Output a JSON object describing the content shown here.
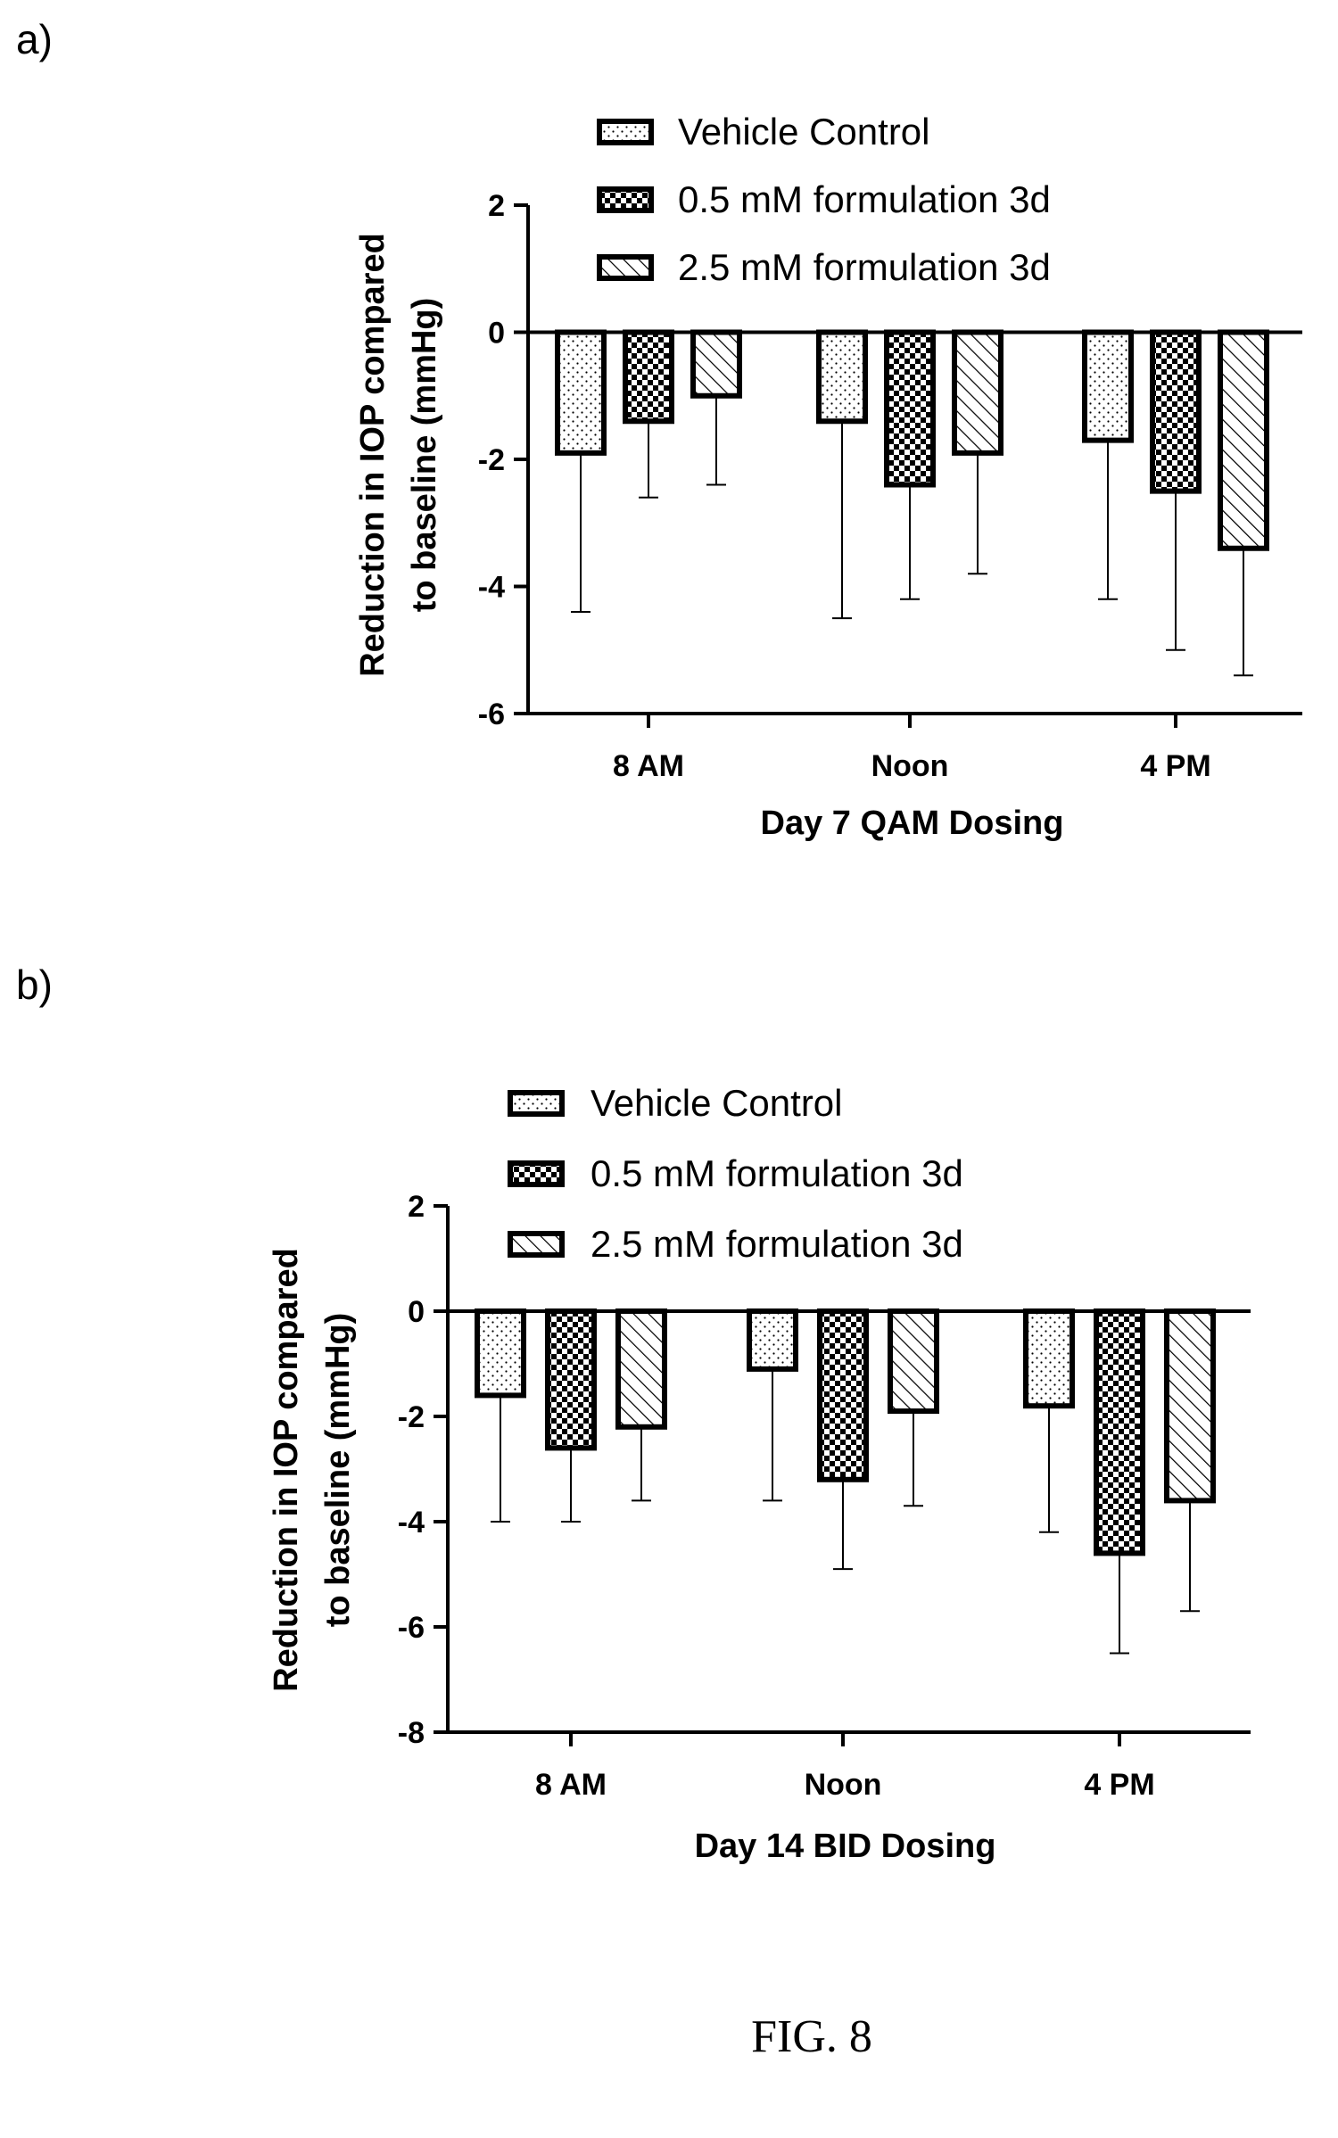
{
  "caption": "FIG. 8",
  "chart_data": [
    {
      "panel_label": "a)",
      "type": "bar",
      "title": "",
      "xlabel": "Day 7 QAM Dosing",
      "ylabel_lines": [
        "Reduction in  IOP compared",
        "to baseline (mmHg)"
      ],
      "categories": [
        "8 AM",
        "Noon",
        "4 PM"
      ],
      "ylim": [
        -6,
        2
      ],
      "yticks": [
        2,
        0,
        -2,
        -4,
        -6
      ],
      "legend_position": "top",
      "series": [
        {
          "name": "Vehicle Control",
          "pattern": "dots",
          "values": [
            -1.9,
            -1.4,
            -1.7
          ],
          "error": [
            2.5,
            3.1,
            2.5
          ]
        },
        {
          "name": "0.5 mM formulation 3d",
          "pattern": "checker",
          "values": [
            -1.4,
            -2.4,
            -2.5
          ],
          "error": [
            1.2,
            1.8,
            2.5
          ]
        },
        {
          "name": "2.5 mM formulation 3d",
          "pattern": "hatch",
          "values": [
            -1.0,
            -1.9,
            -3.4
          ],
          "error": [
            1.4,
            1.9,
            2.0
          ]
        }
      ]
    },
    {
      "panel_label": "b)",
      "type": "bar",
      "title": "",
      "xlabel": "Day 14 BID Dosing",
      "ylabel_lines": [
        "Reduction in  IOP compared",
        "to baseline (mmHg)"
      ],
      "categories": [
        "8 AM",
        "Noon",
        "4 PM"
      ],
      "ylim": [
        -8,
        2
      ],
      "yticks": [
        2,
        0,
        -2,
        -4,
        -6,
        -8
      ],
      "legend_position": "top",
      "series": [
        {
          "name": "Vehicle Control",
          "pattern": "dots",
          "values": [
            -1.6,
            -1.1,
            -1.8
          ],
          "error": [
            2.4,
            2.5,
            2.4
          ]
        },
        {
          "name": "0.5 mM formulation 3d",
          "pattern": "checker",
          "values": [
            -2.6,
            -3.2,
            -4.6
          ],
          "error": [
            1.4,
            1.7,
            1.9
          ]
        },
        {
          "name": "2.5 mM formulation 3d",
          "pattern": "hatch",
          "values": [
            -2.2,
            -1.9,
            -3.6
          ],
          "error": [
            1.4,
            1.8,
            2.1
          ]
        }
      ]
    }
  ]
}
